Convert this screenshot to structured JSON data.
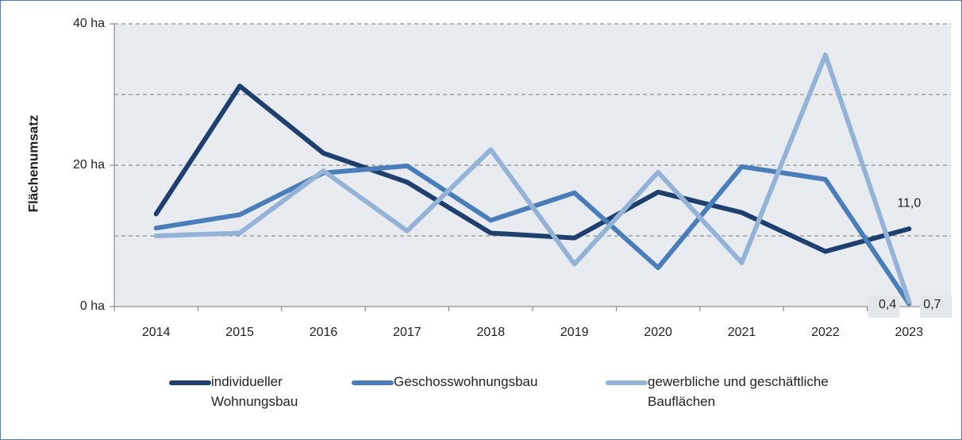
{
  "chart_data": {
    "type": "line",
    "ylabel": "Flächenumsatz",
    "categories": [
      "2014",
      "2015",
      "2016",
      "2017",
      "2018",
      "2019",
      "2020",
      "2021",
      "2022",
      "2023"
    ],
    "series": [
      {
        "name": "individueller Wohnungsbau",
        "color": "#1f3f6e",
        "values": [
          13.1,
          31.2,
          21.7,
          17.6,
          10.4,
          9.7,
          16.2,
          13.3,
          7.8,
          11.0
        ],
        "value_labels": [
          null,
          null,
          null,
          null,
          null,
          null,
          null,
          null,
          null,
          "11,0"
        ]
      },
      {
        "name": "Geschosswohnungsbau",
        "color": "#4a7ebb",
        "values": [
          11.1,
          13.0,
          18.9,
          19.9,
          12.2,
          16.1,
          5.5,
          19.8,
          18.0,
          0.4
        ],
        "value_labels": [
          null,
          null,
          null,
          null,
          null,
          null,
          null,
          null,
          null,
          "0,4"
        ]
      },
      {
        "name": "gewerbliche und geschäftliche Bauflächen",
        "color": "#95b3d7",
        "values": [
          10.0,
          10.4,
          19.2,
          10.7,
          22.2,
          6.0,
          19.0,
          6.2,
          35.6,
          0.7
        ],
        "value_labels": [
          null,
          null,
          null,
          null,
          null,
          null,
          null,
          null,
          null,
          "0,7"
        ]
      }
    ],
    "ylim": [
      0,
      40
    ],
    "yticks": [
      {
        "value": 0,
        "label": "0 ha"
      },
      {
        "value": 20,
        "label": "20 ha"
      },
      {
        "value": 40,
        "label": "40 ha"
      }
    ],
    "yminor_grid": [
      10,
      30
    ],
    "grid": true,
    "legend": "bottom"
  }
}
